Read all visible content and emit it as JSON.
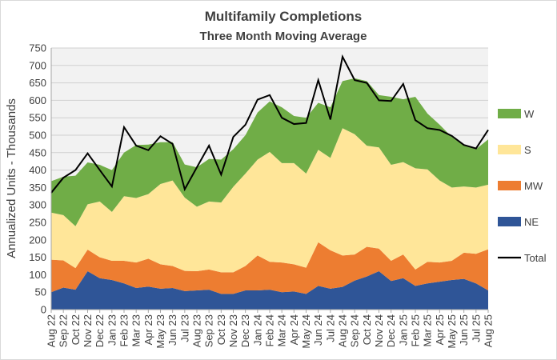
{
  "chart_data": {
    "type": "area",
    "title": "Multifamily  Completions",
    "subtitle": "Three Month Moving Average",
    "ylabel": "Annualized  Units  - Thousands",
    "ylim": [
      0,
      750
    ],
    "y_ticks": [
      "0",
      "50",
      "100",
      "150",
      "200",
      "250",
      "300",
      "350",
      "400",
      "450",
      "500",
      "550",
      "600",
      "650",
      "700",
      "750"
    ],
    "categories": [
      "Aug 22",
      "Sep 22",
      "Oct 22",
      "Nov 22",
      "Dec 22",
      "Jan 23",
      "Feb 23",
      "Mar 23",
      "Apr 23",
      "May 23",
      "Jun 23",
      "Jul 23",
      "Aug 23",
      "Sep 23",
      "Oct 23",
      "Nov 23",
      "Dec 23",
      "Jan 24",
      "Feb 24",
      "Mar 24",
      "Apr 24",
      "May 24",
      "Jun 24",
      "Jul 24",
      "Aug 24",
      "Sep 24",
      "Oct 24",
      "Nov 24",
      "Dec 24",
      "Jan 25",
      "Feb 25",
      "Mar 25",
      "Apr 25",
      "May 25",
      "Jun 25",
      "Jul 25",
      "Aug 25"
    ],
    "x_ticks": [
      "Aug 22",
      "Sep 22",
      "Oct 22",
      "Nov 22",
      "Dec 22",
      "Jan 23",
      "Feb 23",
      "Mar 23",
      "Apr 23",
      "May 23",
      "Jun 23",
      "Jul 23",
      "Aug 23",
      "Sep 23",
      "Oct 23",
      "Nov 23",
      "Dec 23",
      "Jan 24",
      "Feb 24",
      "Mar 24",
      "Apr 24",
      "May 24",
      "Jun 24",
      "Jul 24",
      "Aug 24",
      "Sep 24",
      "Oct 24",
      "Nov 24",
      "Dec 24",
      "Jan 25",
      "Feb 25",
      "Mar 25",
      "Apr 25",
      "May 25",
      "Jun 25",
      "Jul 25",
      "Aug 25"
    ],
    "stacked": true,
    "series": [
      {
        "name": "NE",
        "color": "#2f5597",
        "values": [
          50,
          63,
          57,
          110,
          90,
          85,
          75,
          62,
          66,
          60,
          62,
          53,
          55,
          57,
          45,
          45,
          55,
          55,
          57,
          50,
          52,
          45,
          68,
          60,
          65,
          83,
          95,
          110,
          82,
          90,
          68,
          75,
          80,
          85,
          88,
          75,
          55
        ]
      },
      {
        "name": "MW",
        "color": "#ed7d31",
        "values": [
          93,
          78,
          62,
          62,
          60,
          55,
          65,
          73,
          80,
          70,
          63,
          58,
          55,
          58,
          62,
          62,
          70,
          100,
          80,
          85,
          78,
          75,
          125,
          110,
          90,
          75,
          85,
          65,
          58,
          68,
          47,
          62,
          55,
          55,
          75,
          85,
          118
        ]
      },
      {
        "name": "S",
        "color": "#ffe699",
        "values": [
          135,
          130,
          120,
          130,
          160,
          140,
          185,
          185,
          185,
          230,
          245,
          210,
          185,
          195,
          200,
          245,
          265,
          275,
          315,
          285,
          290,
          270,
          265,
          265,
          365,
          345,
          290,
          290,
          275,
          265,
          290,
          265,
          235,
          210,
          190,
          190,
          185
        ]
      },
      {
        "name": "W",
        "color": "#70ad47",
        "values": [
          90,
          110,
          145,
          120,
          105,
          120,
          125,
          152,
          142,
          120,
          110,
          95,
          113,
          122,
          123,
          108,
          110,
          135,
          145,
          160,
          135,
          160,
          135,
          145,
          135,
          160,
          185,
          150,
          195,
          180,
          205,
          160,
          160,
          145,
          117,
          110,
          130
        ]
      }
    ],
    "total": {
      "name": "Total",
      "color": "#000000",
      "values": [
        335,
        378,
        400,
        448,
        400,
        353,
        523,
        470,
        457,
        497,
        475,
        345,
        408,
        470,
        387,
        495,
        530,
        602,
        615,
        550,
        532,
        535,
        658,
        545,
        725,
        658,
        650,
        600,
        598,
        647,
        543,
        520,
        515,
        498,
        472,
        462,
        515
      ]
    },
    "legend": {
      "placement": "right",
      "entries": [
        "W",
        "S",
        "MW",
        "NE",
        "Total"
      ]
    },
    "grid": true
  }
}
